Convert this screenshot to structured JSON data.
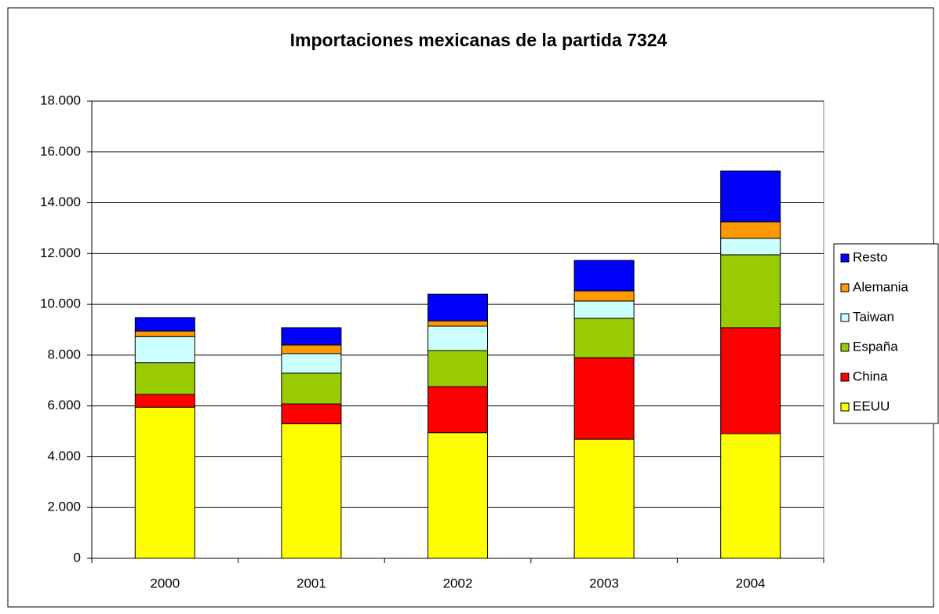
{
  "chart_data": {
    "type": "stacked_bar",
    "title": "Importaciones mexicanas de la partida 7324",
    "categories": [
      "2000",
      "2001",
      "2002",
      "2003",
      "2004"
    ],
    "series": [
      {
        "name": "EEUU",
        "color": "#ffff00",
        "values": [
          5950,
          5300,
          4950,
          4690,
          4910
        ]
      },
      {
        "name": "China",
        "color": "#ff0000",
        "values": [
          500,
          780,
          1810,
          3210,
          4170
        ]
      },
      {
        "name": "España",
        "color": "#99cc00",
        "values": [
          1250,
          1210,
          1420,
          1550,
          2870
        ]
      },
      {
        "name": "Taiwan",
        "color": "#ccffff",
        "values": [
          1030,
          770,
          960,
          680,
          650
        ]
      },
      {
        "name": "Alemania",
        "color": "#ff9900",
        "values": [
          220,
          340,
          210,
          400,
          650
        ]
      },
      {
        "name": "Resto",
        "color": "#0000ff",
        "values": [
          530,
          680,
          1050,
          1200,
          2000
        ]
      }
    ],
    "ylim": [
      0,
      18000
    ],
    "yticks": [
      0,
      {
        "value": 2000,
        "label": "2.000"
      },
      {
        "value": 4000,
        "label": "4.000"
      },
      {
        "value": 6000,
        "label": "6.000"
      },
      {
        "value": 8000,
        "label": "8.000"
      },
      {
        "value": 10000,
        "label": "10.000"
      },
      {
        "value": 12000,
        "label": "12.000"
      },
      {
        "value": 14000,
        "label": "14.000"
      },
      {
        "value": 16000,
        "label": "16.000"
      },
      {
        "value": 18000,
        "label": "18.000"
      }
    ],
    "grid": true,
    "legend": "right"
  }
}
